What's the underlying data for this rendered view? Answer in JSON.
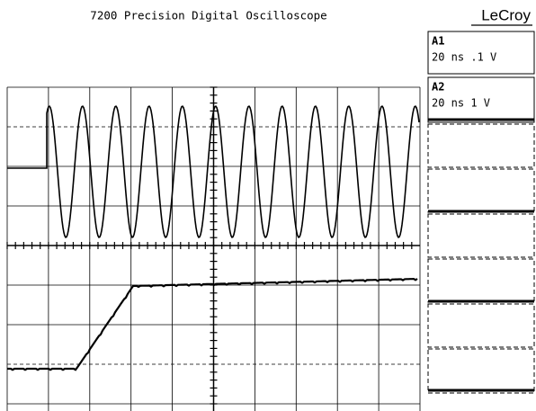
{
  "header": {
    "title": "7200 Precision Digital Oscilloscope",
    "brand": "LeCroy"
  },
  "channels": [
    {
      "name": "A1",
      "setting": "20 ns .1 V"
    },
    {
      "name": "A2",
      "setting": "20 ns 1 V"
    }
  ]
}
